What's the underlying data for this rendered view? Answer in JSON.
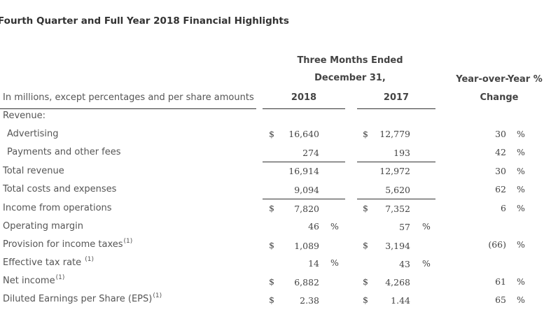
{
  "title": "Fourth Quarter and Full Year 2018 Financial Highlights",
  "header": {
    "period_line1": "Three Months Ended",
    "period_line2": "December 31,",
    "yoy_line1": "Year-over-Year %",
    "yoy_line2": "Change",
    "units": "In millions, except percentages and per share amounts",
    "col_2018": "2018",
    "col_2017": "2017"
  },
  "currency_symbol": "$",
  "percent_symbol": "%",
  "revenue_heading": "Revenue:",
  "rows": [
    {
      "label": "Advertising",
      "v2018": "16,640",
      "v2017": "12,779",
      "yoy": "30"
    },
    {
      "label": "Payments and other fees",
      "v2018": "274",
      "v2017": "193",
      "yoy": "42"
    },
    {
      "label": "Total revenue",
      "v2018": "16,914",
      "v2017": "12,972",
      "yoy": "30"
    },
    {
      "label": "Total costs and expenses",
      "v2018": "9,094",
      "v2017": "5,620",
      "yoy": "62"
    },
    {
      "label": "Income from operations",
      "v2018": "7,820",
      "v2017": "7,352",
      "yoy": "6"
    },
    {
      "label": "Operating margin",
      "v2018": "46",
      "v2017": "57",
      "yoy": ""
    },
    {
      "label": "Provision for income taxes",
      "note": "(1)",
      "v2018": "1,089",
      "v2017": "3,194",
      "yoy": "(66)"
    },
    {
      "label": "Effective tax rate",
      "note": "(1)",
      "v2018": "14",
      "v2017": "43",
      "yoy": ""
    },
    {
      "label": "Net income",
      "note": "(1)",
      "v2018": "6,882",
      "v2017": "4,268",
      "yoy": "61"
    },
    {
      "label": "Diluted Earnings per Share (EPS)",
      "note": "(1)",
      "v2018": "2.38",
      "v2017": "1.44",
      "yoy": "65"
    }
  ]
}
